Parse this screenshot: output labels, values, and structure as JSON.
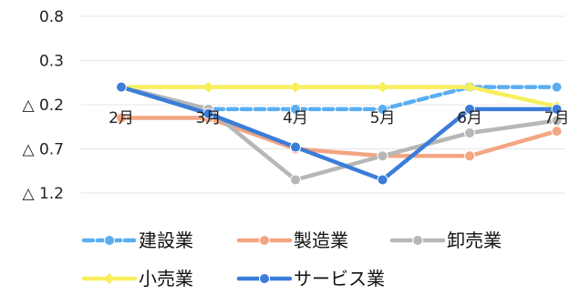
{
  "chart_data": {
    "type": "line",
    "categories": [
      "2月",
      "3月",
      "4月",
      "5月",
      "6月",
      "7月"
    ],
    "y_tick_labels": [
      "0.8",
      "0.3",
      "△ 0.2",
      "△ 0.7",
      "△ 1.2"
    ],
    "y_tick_values": [
      0.8,
      0.3,
      -0.2,
      -0.7,
      -1.2
    ],
    "ylim": [
      -1.2,
      0.8
    ],
    "grid": true,
    "legend_position": "bottom",
    "series": [
      {
        "name": "建設業",
        "color": "#5aaef0",
        "dashed": true,
        "marker": "circle",
        "values": [
          0.0,
          -0.25,
          -0.25,
          -0.25,
          0.0,
          0.0
        ]
      },
      {
        "name": "製造業",
        "color": "#f4a582",
        "dashed": false,
        "marker": "circle",
        "values": [
          -0.35,
          -0.35,
          -0.7,
          -0.78,
          -0.78,
          -0.5
        ]
      },
      {
        "name": "卸売業",
        "color": "#b7b7b7",
        "dashed": false,
        "marker": "circle",
        "values": [
          0.0,
          -0.25,
          -1.05,
          -0.78,
          -0.52,
          -0.38
        ]
      },
      {
        "name": "小売業",
        "color": "#f7ef5e",
        "dashed": false,
        "marker": "diamond",
        "values": [
          0.0,
          0.0,
          0.0,
          0.0,
          0.0,
          -0.22
        ]
      },
      {
        "name": "サービス業",
        "color": "#3b7dd8",
        "dashed": false,
        "marker": "circle",
        "values": [
          0.0,
          -0.3,
          -0.68,
          -1.05,
          -0.25,
          -0.25
        ]
      }
    ]
  }
}
